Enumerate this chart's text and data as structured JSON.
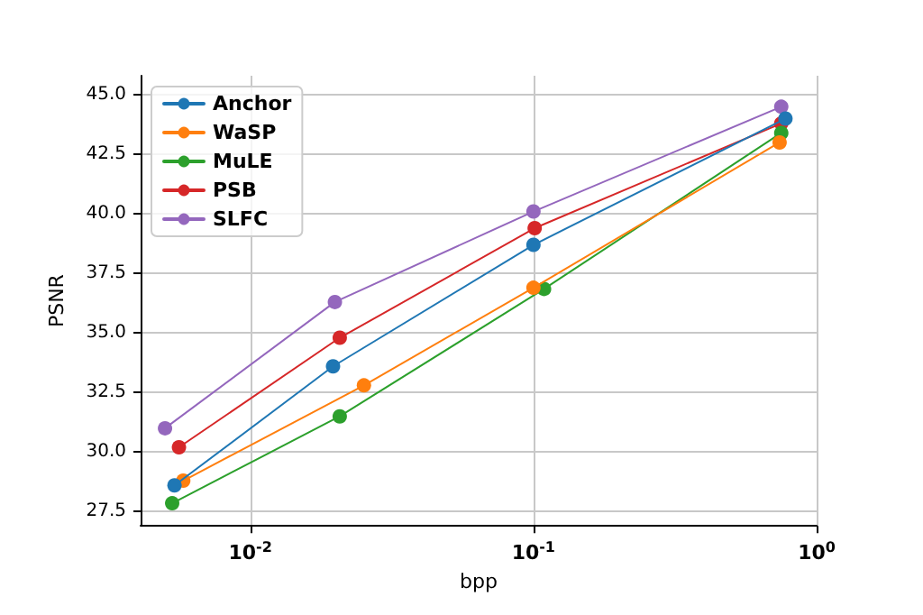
{
  "chart_data": {
    "type": "line",
    "xlabel": "bpp",
    "ylabel": "PSNR",
    "log": "x",
    "xlim": [
      0.0041,
      1.0
    ],
    "xticks": [
      {
        "value": 0.01,
        "label": "10$^{-2}$"
      },
      {
        "value": 0.1,
        "label": "10$^{-1}$"
      },
      {
        "value": 1,
        "label": "10$^{0}$"
      }
    ],
    "ylim": [
      26.9,
      45.8
    ],
    "yticks": [
      {
        "value": 27.5,
        "label": "27.5"
      },
      {
        "value": 30,
        "label": "30.0"
      },
      {
        "value": 32.5,
        "label": "32.5"
      },
      {
        "value": 35,
        "label": "35.0"
      },
      {
        "value": 37.5,
        "label": "37.5"
      },
      {
        "value": 40,
        "label": "40.0"
      },
      {
        "value": 42.5,
        "label": "42.5"
      },
      {
        "value": 45,
        "label": "45.0"
      }
    ],
    "grid": true,
    "legend": "top left",
    "marker": "circle",
    "line_style": "solid",
    "series": [
      {
        "name": "Anchor",
        "color": "#1f77b4",
        "x": [
          0.0054,
          0.0196,
          0.1,
          0.776
        ],
        "values": [
          28.6,
          33.6,
          38.7,
          44.0
        ]
      },
      {
        "name": "WaSP",
        "color": "#ff7f0e",
        "x": [
          0.0058,
          0.0252,
          0.1,
          0.74
        ],
        "values": [
          28.8,
          32.8,
          36.9,
          43.0
        ]
      },
      {
        "name": "MuLE",
        "color": "#2ca02c",
        "x": [
          0.0053,
          0.0207,
          0.109,
          0.75
        ],
        "values": [
          27.85,
          31.5,
          36.85,
          43.4
        ]
      },
      {
        "name": "PSB",
        "color": "#d62728",
        "x": [
          0.0056,
          0.0207,
          0.101,
          0.75
        ],
        "values": [
          30.2,
          34.8,
          39.4,
          43.8
        ]
      },
      {
        "name": "SLFC",
        "color": "#9467bd",
        "x": [
          0.005,
          0.0199,
          0.1,
          0.75
        ],
        "values": [
          31.0,
          36.3,
          40.1,
          44.5
        ]
      }
    ]
  }
}
